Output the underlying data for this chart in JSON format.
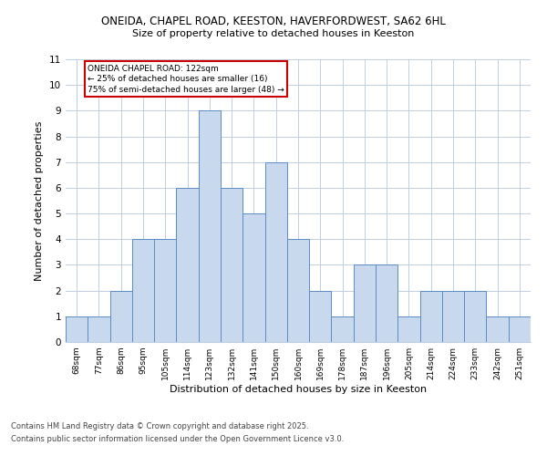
{
  "title1": "ONEIDA, CHAPEL ROAD, KEESTON, HAVERFORDWEST, SA62 6HL",
  "title2": "Size of property relative to detached houses in Keeston",
  "xlabel": "Distribution of detached houses by size in Keeston",
  "ylabel": "Number of detached properties",
  "bin_labels": [
    "68sqm",
    "77sqm",
    "86sqm",
    "95sqm",
    "105sqm",
    "114sqm",
    "123sqm",
    "132sqm",
    "141sqm",
    "150sqm",
    "160sqm",
    "169sqm",
    "178sqm",
    "187sqm",
    "196sqm",
    "205sqm",
    "214sqm",
    "224sqm",
    "233sqm",
    "242sqm",
    "251sqm"
  ],
  "bar_values": [
    1,
    1,
    2,
    4,
    4,
    6,
    9,
    6,
    5,
    7,
    4,
    2,
    1,
    3,
    3,
    1,
    2,
    2,
    2,
    1,
    1
  ],
  "bar_color": "#c9d9ed",
  "bar_edge_color": "#5b8ac6",
  "highlight_bar_index": 6,
  "ylim": [
    0,
    11
  ],
  "yticks": [
    0,
    1,
    2,
    3,
    4,
    5,
    6,
    7,
    8,
    9,
    10,
    11
  ],
  "annotation_text": "ONEIDA CHAPEL ROAD: 122sqm\n← 25% of detached houses are smaller (16)\n75% of semi-detached houses are larger (48) →",
  "annotation_box_color": "#ffffff",
  "annotation_box_edge_color": "#cc0000",
  "footer1": "Contains HM Land Registry data © Crown copyright and database right 2025.",
  "footer2": "Contains public sector information licensed under the Open Government Licence v3.0.",
  "background_color": "#ffffff",
  "grid_color": "#c0cfe0"
}
